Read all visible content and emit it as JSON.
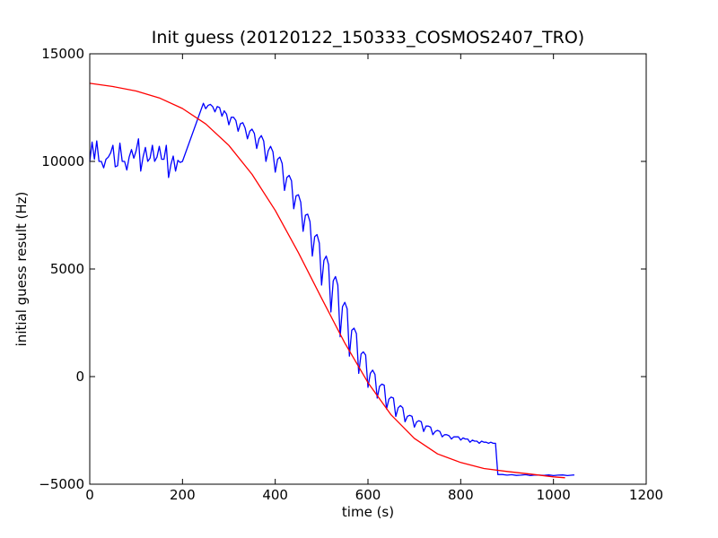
{
  "chart_data": {
    "type": "line",
    "title": "Init guess (20120122_150333_COSMOS2407_TRO)",
    "xlabel": "time (s)",
    "ylabel": "initial guess result (Hz)",
    "xlim": [
      0,
      1200
    ],
    "ylim": [
      -5000,
      15000
    ],
    "x_ticks": [
      0,
      200,
      400,
      600,
      800,
      1000,
      1200
    ],
    "y_ticks": [
      -5000,
      0,
      5000,
      10000,
      15000
    ],
    "grid": false,
    "legend": "none",
    "series": [
      {
        "color": "#0000ff",
        "points": [
          [
            0,
            10000
          ],
          [
            5,
            10900
          ],
          [
            10,
            10100
          ],
          [
            15,
            10950
          ],
          [
            20,
            10000
          ],
          [
            25,
            10000
          ],
          [
            30,
            9700
          ],
          [
            35,
            10100
          ],
          [
            40,
            10200
          ],
          [
            45,
            10400
          ],
          [
            50,
            10750
          ],
          [
            55,
            9750
          ],
          [
            60,
            9800
          ],
          [
            65,
            10850
          ],
          [
            70,
            10000
          ],
          [
            75,
            10000
          ],
          [
            80,
            9600
          ],
          [
            85,
            10200
          ],
          [
            90,
            10550
          ],
          [
            95,
            10150
          ],
          [
            100,
            10500
          ],
          [
            105,
            11050
          ],
          [
            110,
            9550
          ],
          [
            115,
            10200
          ],
          [
            120,
            10650
          ],
          [
            125,
            10000
          ],
          [
            130,
            10150
          ],
          [
            135,
            10750
          ],
          [
            140,
            10000
          ],
          [
            145,
            10200
          ],
          [
            150,
            10700
          ],
          [
            155,
            10100
          ],
          [
            160,
            10100
          ],
          [
            165,
            10750
          ],
          [
            170,
            9250
          ],
          [
            175,
            9850
          ],
          [
            180,
            10250
          ],
          [
            185,
            9550
          ],
          [
            190,
            10050
          ],
          [
            195,
            9950
          ],
          [
            200,
            10000
          ],
          [
            245,
            12700
          ],
          [
            250,
            12450
          ],
          [
            255,
            12600
          ],
          [
            260,
            12650
          ],
          [
            265,
            12550
          ],
          [
            270,
            12300
          ],
          [
            275,
            12550
          ],
          [
            280,
            12500
          ],
          [
            285,
            12100
          ],
          [
            290,
            12350
          ],
          [
            295,
            12200
          ],
          [
            300,
            11700
          ],
          [
            305,
            12050
          ],
          [
            310,
            12050
          ],
          [
            315,
            11900
          ],
          [
            320,
            11400
          ],
          [
            325,
            11750
          ],
          [
            330,
            11800
          ],
          [
            335,
            11550
          ],
          [
            340,
            11050
          ],
          [
            345,
            11400
          ],
          [
            350,
            11500
          ],
          [
            355,
            11300
          ],
          [
            360,
            10600
          ],
          [
            365,
            11050
          ],
          [
            370,
            11200
          ],
          [
            375,
            10950
          ],
          [
            380,
            10000
          ],
          [
            385,
            10500
          ],
          [
            390,
            10700
          ],
          [
            395,
            10450
          ],
          [
            400,
            9500
          ],
          [
            405,
            10100
          ],
          [
            410,
            10200
          ],
          [
            415,
            9900
          ],
          [
            420,
            8650
          ],
          [
            425,
            9250
          ],
          [
            430,
            9350
          ],
          [
            435,
            9100
          ],
          [
            440,
            7800
          ],
          [
            445,
            8400
          ],
          [
            450,
            8450
          ],
          [
            455,
            8100
          ],
          [
            460,
            6750
          ],
          [
            465,
            7500
          ],
          [
            470,
            7550
          ],
          [
            475,
            7200
          ],
          [
            480,
            5600
          ],
          [
            485,
            6500
          ],
          [
            490,
            6600
          ],
          [
            495,
            6200
          ],
          [
            500,
            4250
          ],
          [
            505,
            5400
          ],
          [
            510,
            5600
          ],
          [
            515,
            5200
          ],
          [
            520,
            3000
          ],
          [
            525,
            4450
          ],
          [
            530,
            4650
          ],
          [
            535,
            4250
          ],
          [
            540,
            1850
          ],
          [
            545,
            3250
          ],
          [
            550,
            3450
          ],
          [
            555,
            3150
          ],
          [
            560,
            950
          ],
          [
            565,
            2150
          ],
          [
            570,
            2250
          ],
          [
            575,
            2000
          ],
          [
            580,
            150
          ],
          [
            585,
            1050
          ],
          [
            590,
            1150
          ],
          [
            595,
            1000
          ],
          [
            600,
            -500
          ],
          [
            605,
            150
          ],
          [
            610,
            300
          ],
          [
            615,
            100
          ],
          [
            620,
            -1000
          ],
          [
            625,
            -450
          ],
          [
            630,
            -350
          ],
          [
            635,
            -400
          ],
          [
            640,
            -1500
          ],
          [
            645,
            -1050
          ],
          [
            650,
            -950
          ],
          [
            655,
            -1000
          ],
          [
            660,
            -1850
          ],
          [
            665,
            -1450
          ],
          [
            670,
            -1350
          ],
          [
            675,
            -1450
          ],
          [
            680,
            -2100
          ],
          [
            685,
            -1850
          ],
          [
            690,
            -1800
          ],
          [
            695,
            -1850
          ],
          [
            700,
            -2350
          ],
          [
            705,
            -2100
          ],
          [
            710,
            -2050
          ],
          [
            715,
            -2100
          ],
          [
            720,
            -2550
          ],
          [
            725,
            -2300
          ],
          [
            730,
            -2300
          ],
          [
            735,
            -2350
          ],
          [
            740,
            -2700
          ],
          [
            745,
            -2550
          ],
          [
            750,
            -2500
          ],
          [
            755,
            -2550
          ],
          [
            760,
            -2800
          ],
          [
            765,
            -2700
          ],
          [
            770,
            -2700
          ],
          [
            775,
            -2750
          ],
          [
            780,
            -2900
          ],
          [
            785,
            -2800
          ],
          [
            790,
            -2800
          ],
          [
            795,
            -2800
          ],
          [
            800,
            -2950
          ],
          [
            805,
            -2850
          ],
          [
            810,
            -2900
          ],
          [
            815,
            -2900
          ],
          [
            820,
            -3050
          ],
          [
            825,
            -2950
          ],
          [
            830,
            -3000
          ],
          [
            835,
            -3000
          ],
          [
            840,
            -3100
          ],
          [
            845,
            -3000
          ],
          [
            850,
            -3050
          ],
          [
            855,
            -3050
          ],
          [
            860,
            -3100
          ],
          [
            865,
            -3050
          ],
          [
            870,
            -3100
          ],
          [
            875,
            -3100
          ],
          [
            880,
            -4550
          ],
          [
            890,
            -4550
          ],
          [
            900,
            -4580
          ],
          [
            910,
            -4560
          ],
          [
            920,
            -4590
          ],
          [
            930,
            -4580
          ],
          [
            940,
            -4560
          ],
          [
            950,
            -4600
          ],
          [
            960,
            -4570
          ],
          [
            970,
            -4580
          ],
          [
            980,
            -4590
          ],
          [
            990,
            -4570
          ],
          [
            1000,
            -4600
          ],
          [
            1010,
            -4580
          ],
          [
            1020,
            -4570
          ],
          [
            1030,
            -4600
          ],
          [
            1040,
            -4580
          ],
          [
            1045,
            -4570
          ]
        ]
      },
      {
        "color": "#ff0000",
        "points": [
          [
            0,
            13630
          ],
          [
            50,
            13480
          ],
          [
            100,
            13270
          ],
          [
            150,
            12950
          ],
          [
            200,
            12460
          ],
          [
            250,
            11740
          ],
          [
            300,
            10740
          ],
          [
            350,
            9400
          ],
          [
            400,
            7720
          ],
          [
            450,
            5760
          ],
          [
            500,
            3640
          ],
          [
            550,
            1560
          ],
          [
            600,
            -280
          ],
          [
            650,
            -1780
          ],
          [
            700,
            -2870
          ],
          [
            750,
            -3590
          ],
          [
            800,
            -3990
          ],
          [
            850,
            -4270
          ],
          [
            900,
            -4410
          ],
          [
            950,
            -4530
          ],
          [
            1000,
            -4660
          ],
          [
            1025,
            -4700
          ]
        ]
      }
    ]
  }
}
